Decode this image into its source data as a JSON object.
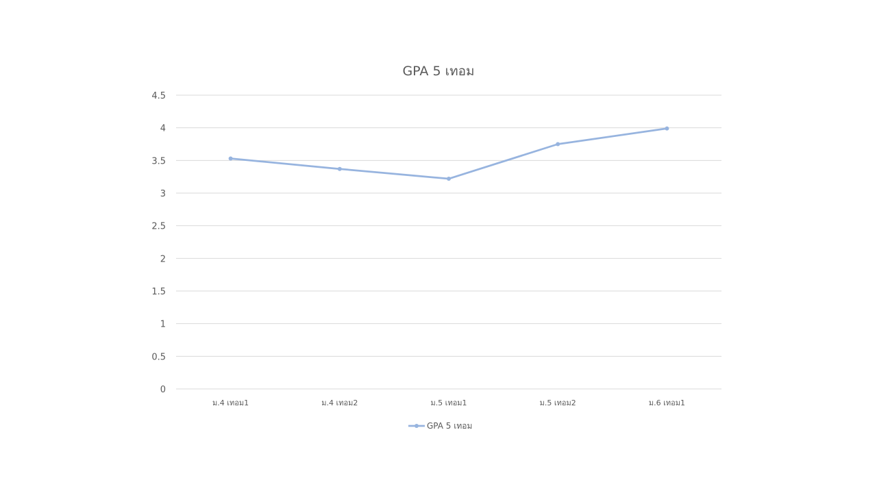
{
  "chart_data": {
    "type": "line",
    "title": "GPA 5 เทอม",
    "xlabel": "",
    "ylabel": "",
    "categories": [
      "ม.4 เทอม1",
      "ม.4 เทอม2",
      "ม.5 เทอม1",
      "ม.5 เทอม2",
      "ม.6 เทอม1"
    ],
    "series": [
      {
        "name": "GPA 5 เทอม",
        "values": [
          3.53,
          3.37,
          3.22,
          3.75,
          3.99
        ],
        "color": "#97b4df",
        "marker": "circle"
      }
    ],
    "ylim": [
      0,
      4.5
    ],
    "yticks": [
      "0",
      "0.5",
      "1",
      "1.5",
      "2",
      "2.5",
      "3",
      "3.5",
      "4",
      "4.5"
    ],
    "grid": true,
    "legend": "bottom"
  }
}
